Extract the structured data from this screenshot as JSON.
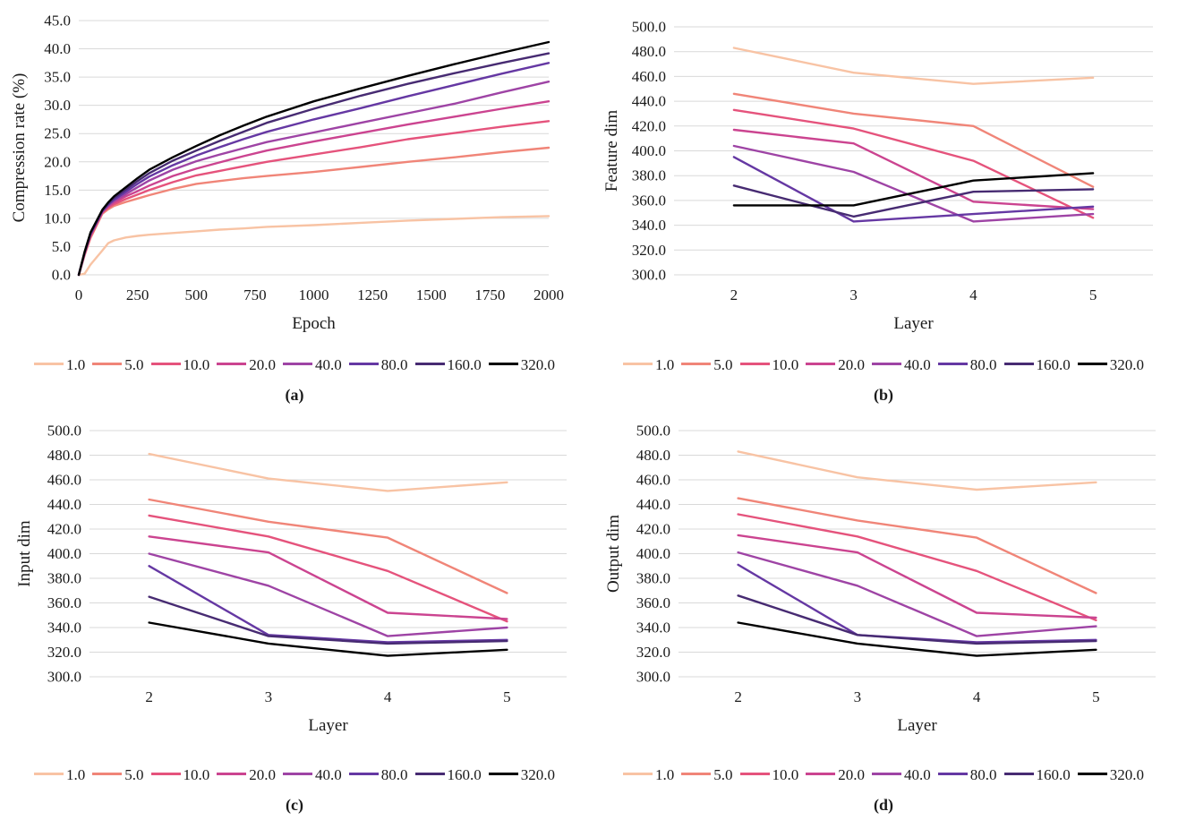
{
  "page": {
    "background": "#FFFFFF",
    "grid_color": "#D9D9D9"
  },
  "legend": {
    "items": [
      {
        "label": "1.0",
        "color": "#F8C3A4"
      },
      {
        "label": "5.0",
        "color": "#F08578"
      },
      {
        "label": "10.0",
        "color": "#E5537C"
      },
      {
        "label": "20.0",
        "color": "#CB4490"
      },
      {
        "label": "40.0",
        "color": "#9E44A5"
      },
      {
        "label": "80.0",
        "color": "#6538A3"
      },
      {
        "label": "160.0",
        "color": "#472B72"
      },
      {
        "label": "320.0",
        "color": "#000000"
      }
    ]
  },
  "chart_data": [
    {
      "id": "a",
      "type": "line",
      "caption": "(a)",
      "xlabel": "Epoch",
      "ylabel": "Compression rate (%)",
      "x_axis": {
        "kind": "linear",
        "min": 0,
        "max": 2000,
        "ticks": [
          0,
          250,
          500,
          750,
          1000,
          1250,
          1500,
          1750,
          2000
        ]
      },
      "y_axis": {
        "min": 0,
        "max": 45,
        "step": 5
      },
      "x": [
        0,
        25,
        50,
        100,
        125,
        150,
        200,
        250,
        300,
        400,
        500,
        600,
        700,
        800,
        1000,
        1200,
        1400,
        1600,
        1800,
        2000
      ],
      "series": [
        {
          "name": "1.0",
          "values": [
            0,
            0.2,
            1.8,
            4.3,
            5.6,
            6.1,
            6.6,
            6.9,
            7.1,
            7.4,
            7.7,
            8.0,
            8.2,
            8.5,
            8.8,
            9.2,
            9.6,
            9.9,
            10.2,
            10.4
          ]
        },
        {
          "name": "5.0",
          "values": [
            0,
            3.5,
            6.5,
            10.8,
            11.6,
            12.2,
            12.9,
            13.5,
            14.1,
            15.2,
            16.1,
            16.6,
            17.1,
            17.5,
            18.2,
            19.1,
            20.0,
            20.8,
            21.7,
            22.5
          ]
        },
        {
          "name": "10.0",
          "values": [
            0,
            3.7,
            6.8,
            11.0,
            11.9,
            12.5,
            13.4,
            14.2,
            15.0,
            16.4,
            17.6,
            18.4,
            19.2,
            20.0,
            21.3,
            22.6,
            24.0,
            25.1,
            26.2,
            27.2
          ]
        },
        {
          "name": "20.0",
          "values": [
            0,
            3.8,
            7.0,
            11.1,
            12.1,
            12.8,
            13.9,
            14.8,
            15.8,
            17.5,
            18.8,
            19.9,
            21.0,
            22.0,
            23.6,
            25.1,
            26.6,
            28.0,
            29.4,
            30.7
          ]
        },
        {
          "name": "40.0",
          "values": [
            0,
            3.9,
            7.1,
            11.2,
            12.3,
            13.1,
            14.3,
            15.5,
            16.7,
            18.6,
            20.1,
            21.3,
            22.4,
            23.5,
            25.2,
            26.9,
            28.6,
            30.3,
            32.3,
            34.2
          ]
        },
        {
          "name": "80.0",
          "values": [
            0,
            4.0,
            7.2,
            11.3,
            12.4,
            13.3,
            14.7,
            16.1,
            17.4,
            19.4,
            21.1,
            22.6,
            24.0,
            25.3,
            27.5,
            29.5,
            31.6,
            33.6,
            35.6,
            37.5
          ]
        },
        {
          "name": "160.0",
          "values": [
            0,
            4.0,
            7.3,
            11.4,
            12.6,
            13.6,
            15.1,
            16.6,
            18.0,
            20.2,
            22.0,
            23.7,
            25.3,
            26.9,
            29.4,
            31.7,
            33.8,
            35.7,
            37.5,
            39.2
          ]
        },
        {
          "name": "320.0",
          "values": [
            0,
            4.1,
            7.5,
            11.5,
            12.8,
            13.9,
            15.5,
            17.1,
            18.6,
            20.8,
            22.8,
            24.7,
            26.4,
            28.0,
            30.7,
            33.0,
            35.2,
            37.3,
            39.3,
            41.2
          ]
        }
      ]
    },
    {
      "id": "b",
      "type": "line",
      "caption": "(b)",
      "xlabel": "Layer",
      "ylabel": "Feature dim",
      "x_axis": {
        "kind": "category",
        "categories": [
          "2",
          "3",
          "4",
          "5"
        ]
      },
      "y_axis": {
        "min": 300,
        "max": 500,
        "step": 20
      },
      "series": [
        {
          "name": "1.0",
          "values": [
            483,
            463,
            454,
            459
          ]
        },
        {
          "name": "5.0",
          "values": [
            446,
            430,
            420,
            371
          ]
        },
        {
          "name": "10.0",
          "values": [
            433,
            418,
            392,
            346
          ]
        },
        {
          "name": "20.0",
          "values": [
            417,
            406,
            359,
            353
          ]
        },
        {
          "name": "40.0",
          "values": [
            404,
            383,
            343,
            349
          ]
        },
        {
          "name": "80.0",
          "values": [
            395,
            343,
            349,
            355
          ]
        },
        {
          "name": "160.0",
          "values": [
            372,
            347,
            367,
            369
          ]
        },
        {
          "name": "320.0",
          "values": [
            356,
            356,
            376,
            382
          ]
        }
      ]
    },
    {
      "id": "c",
      "type": "line",
      "caption": "(c)",
      "xlabel": "Layer",
      "ylabel": "Input dim",
      "x_axis": {
        "kind": "category",
        "categories": [
          "2",
          "3",
          "4",
          "5"
        ]
      },
      "y_axis": {
        "min": 300,
        "max": 500,
        "step": 20
      },
      "series": [
        {
          "name": "1.0",
          "values": [
            481,
            461,
            451,
            458
          ]
        },
        {
          "name": "5.0",
          "values": [
            444,
            426,
            413,
            368
          ]
        },
        {
          "name": "10.0",
          "values": [
            431,
            414,
            386,
            345
          ]
        },
        {
          "name": "20.0",
          "values": [
            414,
            401,
            352,
            347
          ]
        },
        {
          "name": "40.0",
          "values": [
            400,
            374,
            333,
            340
          ]
        },
        {
          "name": "80.0",
          "values": [
            390,
            334,
            328,
            330
          ]
        },
        {
          "name": "160.0",
          "values": [
            365,
            333,
            327,
            329
          ]
        },
        {
          "name": "320.0",
          "values": [
            344,
            327,
            317,
            322
          ]
        }
      ]
    },
    {
      "id": "d",
      "type": "line",
      "caption": "(d)",
      "xlabel": "Layer",
      "ylabel": "Output dim",
      "x_axis": {
        "kind": "category",
        "categories": [
          "2",
          "3",
          "4",
          "5"
        ]
      },
      "y_axis": {
        "min": 300,
        "max": 500,
        "step": 20
      },
      "series": [
        {
          "name": "1.0",
          "values": [
            483,
            462,
            452,
            458
          ]
        },
        {
          "name": "5.0",
          "values": [
            445,
            427,
            413,
            368
          ]
        },
        {
          "name": "10.0",
          "values": [
            432,
            414,
            386,
            346
          ]
        },
        {
          "name": "20.0",
          "values": [
            415,
            401,
            352,
            348
          ]
        },
        {
          "name": "40.0",
          "values": [
            401,
            374,
            333,
            341
          ]
        },
        {
          "name": "80.0",
          "values": [
            391,
            334,
            328,
            330
          ]
        },
        {
          "name": "160.0",
          "values": [
            366,
            334,
            327,
            329
          ]
        },
        {
          "name": "320.0",
          "values": [
            344,
            327,
            317,
            322
          ]
        }
      ]
    }
  ]
}
